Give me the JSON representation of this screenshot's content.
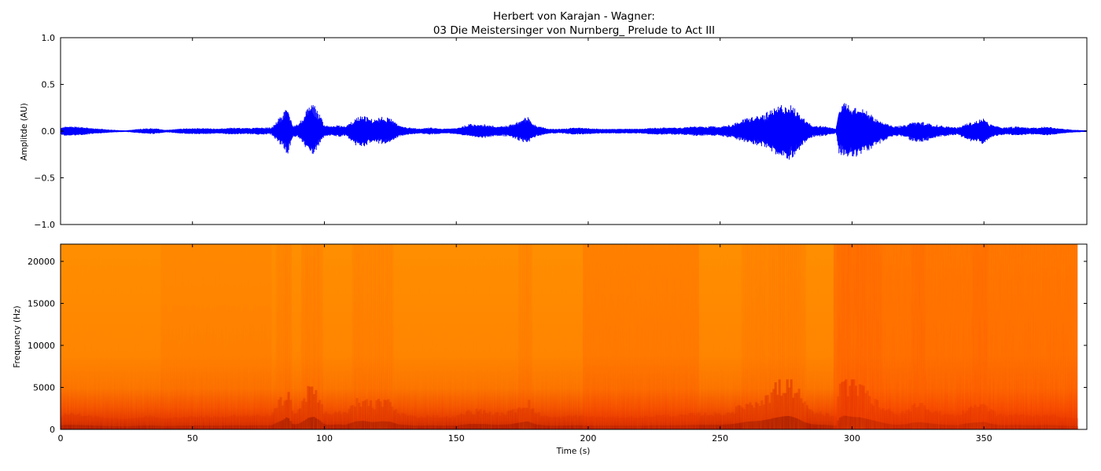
{
  "figure": {
    "title_line1": "Herbert von Karajan - Wagner:",
    "title_line2": "03 Die Meistersinger von Nurnberg_ Prelude to Act III"
  },
  "chart_data": [
    {
      "type": "line",
      "name": "waveform",
      "ylabel": "Amplitde (AU)",
      "xlabel": "",
      "xlim": [
        0,
        389
      ],
      "ylim": [
        -1.0,
        1.0
      ],
      "yticks": [
        1.0,
        0.5,
        0.0,
        -0.5,
        -1.0
      ],
      "ytick_labels": [
        "1.0",
        "0.5",
        "0.0",
        "−0.5",
        "−1.0"
      ],
      "xticks": [
        0,
        50,
        100,
        150,
        200,
        250,
        300,
        350
      ],
      "show_xtick_labels": false,
      "color": "#0000ff",
      "grid": false,
      "envelope": {
        "x": [
          0,
          2,
          5,
          10,
          15,
          20,
          25,
          30,
          35,
          40,
          45,
          50,
          55,
          60,
          65,
          70,
          75,
          80,
          82,
          84,
          86,
          88,
          90,
          92,
          94,
          96,
          98,
          100,
          102,
          105,
          108,
          112,
          115,
          118,
          122,
          125,
          128,
          132,
          136,
          140,
          145,
          150,
          155,
          160,
          165,
          170,
          175,
          177,
          180,
          185,
          190,
          195,
          200,
          205,
          210,
          215,
          220,
          225,
          230,
          235,
          240,
          245,
          250,
          255,
          260,
          262,
          265,
          268,
          270,
          272,
          274,
          276,
          278,
          280,
          282,
          285,
          290,
          292,
          294,
          295,
          297,
          300,
          303,
          306,
          310,
          313,
          316,
          320,
          323,
          326,
          330,
          333,
          336,
          340,
          343,
          346,
          349,
          350,
          352,
          355,
          358,
          362,
          366,
          370,
          374,
          378,
          382,
          385,
          389
        ],
        "upper": [
          0.03,
          0.04,
          0.04,
          0.03,
          0.02,
          0.01,
          0.005,
          0.02,
          0.025,
          0.01,
          0.02,
          0.025,
          0.025,
          0.02,
          0.03,
          0.025,
          0.03,
          0.03,
          0.09,
          0.14,
          0.22,
          0.05,
          0.06,
          0.12,
          0.2,
          0.22,
          0.15,
          0.05,
          0.04,
          0.05,
          0.04,
          0.11,
          0.13,
          0.1,
          0.12,
          0.11,
          0.05,
          0.03,
          0.02,
          0.03,
          0.02,
          0.025,
          0.06,
          0.06,
          0.04,
          0.05,
          0.1,
          0.12,
          0.05,
          0.02,
          0.02,
          0.03,
          0.025,
          0.02,
          0.02,
          0.02,
          0.02,
          0.03,
          0.03,
          0.03,
          0.04,
          0.04,
          0.04,
          0.06,
          0.11,
          0.12,
          0.13,
          0.16,
          0.18,
          0.21,
          0.23,
          0.23,
          0.2,
          0.15,
          0.1,
          0.05,
          0.04,
          0.03,
          0.02,
          0.19,
          0.25,
          0.22,
          0.2,
          0.16,
          0.1,
          0.06,
          0.04,
          0.05,
          0.08,
          0.08,
          0.06,
          0.05,
          0.04,
          0.03,
          0.06,
          0.08,
          0.1,
          0.11,
          0.06,
          0.04,
          0.03,
          0.04,
          0.03,
          0.03,
          0.04,
          0.025,
          0.015,
          0.01,
          0.005
        ],
        "lower": [
          -0.03,
          -0.04,
          -0.04,
          -0.03,
          -0.02,
          -0.01,
          -0.005,
          -0.02,
          -0.025,
          -0.01,
          -0.02,
          -0.025,
          -0.025,
          -0.02,
          -0.03,
          -0.025,
          -0.03,
          -0.03,
          -0.08,
          -0.13,
          -0.2,
          -0.05,
          -0.05,
          -0.1,
          -0.19,
          -0.2,
          -0.12,
          -0.05,
          -0.04,
          -0.05,
          -0.04,
          -0.12,
          -0.13,
          -0.09,
          -0.11,
          -0.1,
          -0.05,
          -0.03,
          -0.02,
          -0.03,
          -0.02,
          -0.025,
          -0.05,
          -0.06,
          -0.04,
          -0.05,
          -0.09,
          -0.1,
          -0.05,
          -0.02,
          -0.02,
          -0.03,
          -0.025,
          -0.02,
          -0.02,
          -0.02,
          -0.02,
          -0.03,
          -0.03,
          -0.03,
          -0.04,
          -0.04,
          -0.04,
          -0.06,
          -0.1,
          -0.11,
          -0.12,
          -0.15,
          -0.19,
          -0.21,
          -0.23,
          -0.24,
          -0.21,
          -0.16,
          -0.1,
          -0.05,
          -0.04,
          -0.03,
          -0.02,
          -0.19,
          -0.23,
          -0.22,
          -0.21,
          -0.17,
          -0.11,
          -0.07,
          -0.04,
          -0.05,
          -0.09,
          -0.1,
          -0.07,
          -0.05,
          -0.04,
          -0.03,
          -0.07,
          -0.09,
          -0.1,
          -0.11,
          -0.07,
          -0.04,
          -0.03,
          -0.04,
          -0.03,
          -0.03,
          -0.04,
          -0.025,
          -0.015,
          -0.01,
          -0.005
        ]
      }
    },
    {
      "type": "heatmap",
      "name": "spectrogram",
      "ylabel": "Frequency (Hz)",
      "xlabel": "Time (s)",
      "xlim": [
        0,
        389
      ],
      "ylim": [
        0,
        22050
      ],
      "xticks": [
        0,
        50,
        100,
        150,
        200,
        250,
        300,
        350
      ],
      "xtick_labels": [
        "0",
        "50",
        "100",
        "150",
        "200",
        "250",
        "300",
        "350"
      ],
      "yticks": [
        0,
        5000,
        10000,
        15000,
        20000
      ],
      "ytick_labels": [
        "0",
        "5000",
        "10000",
        "15000",
        "20000"
      ],
      "data_end_time": 385.5,
      "colormap": [
        "#ffa500",
        "#ff8c00",
        "#ff6a00",
        "#ee3500",
        "#c81400",
        "#8b0000"
      ],
      "grid": false
    }
  ]
}
